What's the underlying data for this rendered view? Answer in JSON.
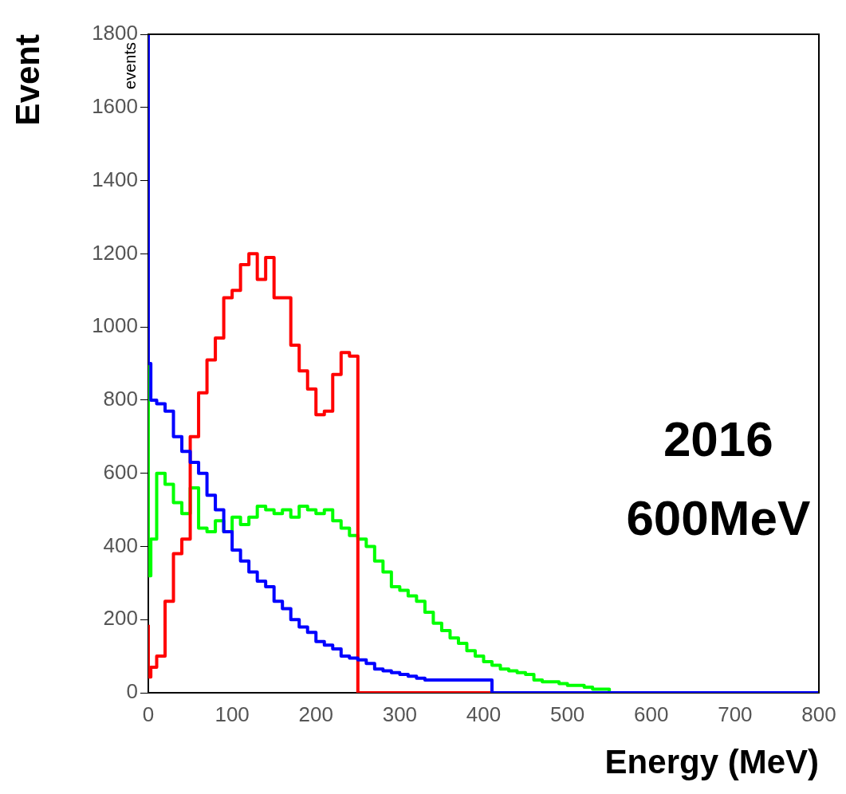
{
  "chart_data": {
    "type": "step",
    "xlabel": "Energy (MeV)",
    "ylabel": "Event",
    "annotations": [
      "events",
      "2016",
      "600MeV"
    ],
    "x": [
      0,
      3,
      10,
      20,
      30,
      40,
      50,
      60,
      70,
      80,
      90,
      100,
      110,
      120,
      130,
      140,
      150,
      160,
      170,
      180,
      190,
      200,
      210,
      220,
      230,
      240,
      250,
      260,
      270,
      280,
      290,
      300,
      310,
      320,
      330,
      340,
      350,
      360,
      370,
      380,
      390,
      400,
      410,
      420,
      430,
      440,
      450,
      460,
      470,
      480,
      490,
      500,
      510,
      520,
      530,
      540,
      550,
      560,
      800
    ],
    "series": [
      {
        "color": "#0000ff",
        "values": [
          1800,
          900,
          800,
          790,
          770,
          700,
          660,
          630,
          600,
          540,
          500,
          440,
          390,
          360,
          330,
          305,
          290,
          250,
          230,
          200,
          180,
          165,
          140,
          130,
          120,
          100,
          95,
          90,
          80,
          65,
          60,
          55,
          50,
          45,
          40,
          35,
          35,
          35,
          35,
          35,
          35,
          35,
          35,
          0,
          0,
          0,
          0,
          0,
          0,
          0,
          0,
          0,
          0,
          0,
          0,
          0,
          0,
          0,
          0
        ]
      },
      {
        "color": "#ff0000",
        "values": [
          186,
          43,
          70,
          100,
          250,
          380,
          420,
          700,
          820,
          910,
          970,
          1080,
          1100,
          1170,
          1200,
          1130,
          1190,
          1080,
          1080,
          950,
          880,
          830,
          760,
          770,
          870,
          930,
          920,
          0,
          0,
          0,
          0,
          0,
          0,
          0,
          0,
          0,
          0,
          0,
          0,
          0,
          0,
          0,
          0,
          0,
          null,
          null,
          null,
          null,
          null,
          null,
          null,
          null,
          null,
          null,
          null,
          null,
          null,
          null,
          null
        ]
      },
      {
        "color": "#00ff00",
        "values": [
          900,
          320,
          420,
          600,
          570,
          520,
          490,
          560,
          450,
          440,
          470,
          440,
          480,
          460,
          480,
          510,
          500,
          490,
          500,
          480,
          510,
          500,
          490,
          500,
          470,
          450,
          430,
          420,
          400,
          360,
          330,
          290,
          280,
          265,
          250,
          220,
          190,
          170,
          150,
          135,
          115,
          100,
          85,
          75,
          65,
          60,
          55,
          50,
          35,
          30,
          30,
          25,
          20,
          20,
          15,
          10,
          10,
          0,
          null
        ]
      }
    ],
    "xlim": [
      0,
      800
    ],
    "ylim": [
      0,
      1800
    ],
    "xticks": [
      0,
      100,
      200,
      300,
      400,
      500,
      600,
      700,
      800
    ],
    "yticks": [
      0,
      200,
      400,
      600,
      800,
      1000,
      1200,
      1400,
      1600,
      1800
    ]
  }
}
